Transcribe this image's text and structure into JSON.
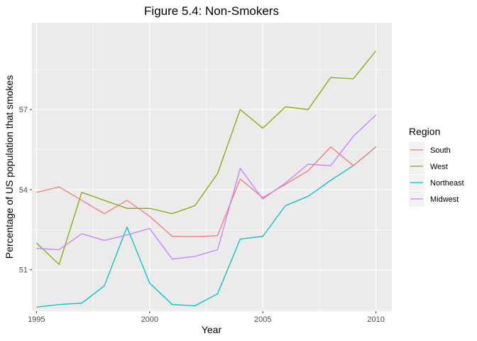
{
  "chart_data": {
    "type": "line",
    "title": "Figure 5.4: Non-Smokers",
    "xlabel": "Year",
    "ylabel": "Percentage of US population that smokes",
    "x": [
      1995,
      1996,
      1997,
      1998,
      1999,
      2000,
      2001,
      2002,
      2003,
      2004,
      2005,
      2006,
      2007,
      2008,
      2009,
      2010
    ],
    "xlim": [
      1994.8,
      2010.7
    ],
    "ylim": [
      49.45,
      60.25
    ],
    "x_ticks": [
      1995,
      2000,
      2005,
      2010
    ],
    "x_tick_labels": [
      "1995",
      "2000",
      "2005",
      "2010"
    ],
    "y_ticks": [
      51,
      54,
      57
    ],
    "y_tick_labels": [
      "51",
      "54",
      "57"
    ],
    "x_minor_ticks": [
      1997.5,
      2002.5,
      2007.5
    ],
    "y_minor_ticks": [
      49.5,
      52.5,
      55.5,
      58.5
    ],
    "grid": true,
    "legend": {
      "title": "Region",
      "position": "right"
    },
    "series": [
      {
        "name": "South",
        "color": "#F8766D",
        "values": [
          53.9,
          54.1,
          53.6,
          53.1,
          53.6,
          53.0,
          52.25,
          52.24,
          52.28,
          54.4,
          53.7,
          54.2,
          54.7,
          55.6,
          54.9,
          55.6
        ]
      },
      {
        "name": "West",
        "color": "#7CAE00",
        "values": [
          52.0,
          51.2,
          53.9,
          53.6,
          53.3,
          53.3,
          53.1,
          53.4,
          54.6,
          57.0,
          56.3,
          57.1,
          57.0,
          58.2,
          58.15,
          59.2
        ]
      },
      {
        "name": "Northeast",
        "color": "#00BFC4",
        "values": [
          49.6,
          49.7,
          49.75,
          50.4,
          52.6,
          50.5,
          49.7,
          49.65,
          50.1,
          52.15,
          52.25,
          53.4,
          53.75,
          54.35,
          54.9,
          55.6
        ]
      },
      {
        "name": "Midwest",
        "color": "#C77CFF",
        "values": [
          51.8,
          51.75,
          52.35,
          52.1,
          52.3,
          52.55,
          51.4,
          51.5,
          51.75,
          54.8,
          53.65,
          54.25,
          54.95,
          54.9,
          56.0,
          56.8
        ]
      }
    ]
  }
}
